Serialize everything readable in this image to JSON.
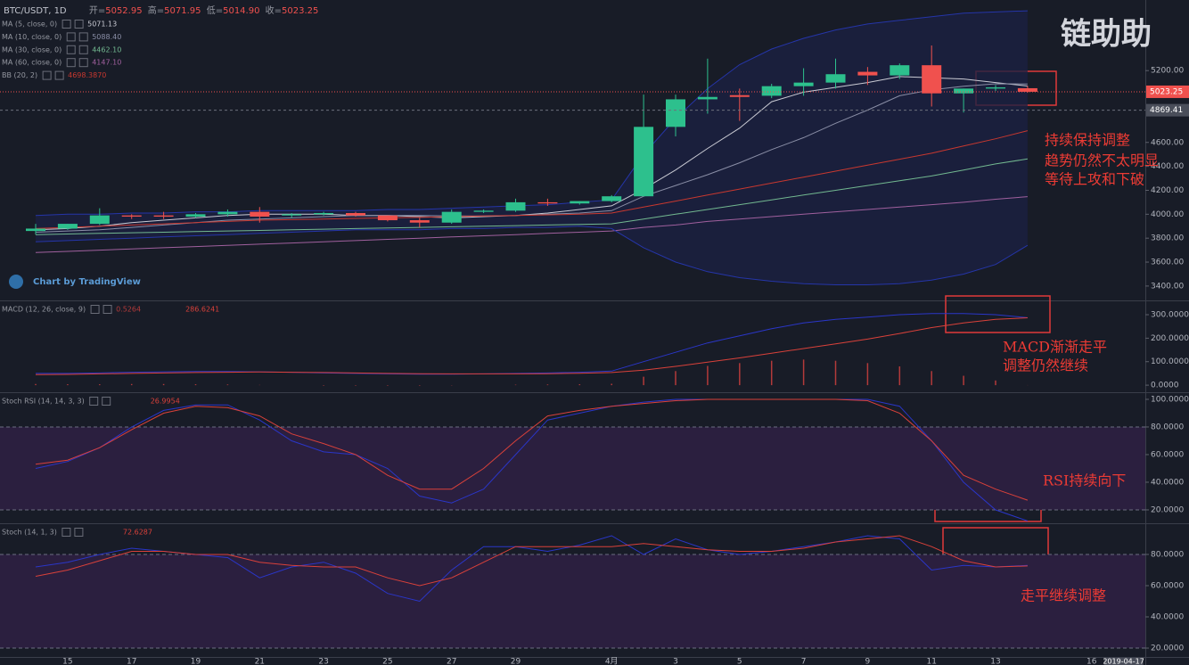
{
  "header": {
    "symbol": "BTC/USDT, 1D",
    "open_label": "开=",
    "open": "5052.95",
    "high_label": "高=",
    "high": "5071.95",
    "low_label": "低=",
    "low": "5014.90",
    "close_label": "收=",
    "close": "5023.25"
  },
  "watermark": "链助助",
  "credit": "Chart by TradingView",
  "chart_data": [
    {
      "type": "candlestick",
      "categories": [
        null,
        "15",
        null,
        "17",
        null,
        "19",
        null,
        "21",
        null,
        "23",
        null,
        "25",
        null,
        "27",
        null,
        "29",
        null,
        null,
        "4月",
        null,
        "3",
        null,
        "5",
        null,
        "7",
        null,
        "9",
        null,
        "11",
        null,
        "13",
        null,
        null,
        "16",
        "2019-04-17"
      ],
      "open": [
        3860,
        3880,
        3920,
        3990,
        3990,
        3980,
        4000,
        4020,
        3990,
        4000,
        4010,
        3990,
        3950,
        3930,
        4020,
        4030,
        4100,
        4090,
        4110,
        4150,
        4730,
        4960,
        4995,
        4990,
        5070,
        5100,
        5190,
        5160,
        5245,
        5010,
        5050,
        5052.95,
        null,
        null,
        null
      ],
      "high": [
        3920,
        3920,
        4050,
        4000,
        4020,
        4010,
        4040,
        4060,
        4010,
        4020,
        4020,
        3990,
        3970,
        4040,
        4040,
        4130,
        4130,
        4110,
        4160,
        5000,
        5000,
        5300,
        5050,
        5090,
        5220,
        5300,
        5230,
        5260,
        5410,
        5050,
        5080,
        5071.95,
        null,
        null,
        null
      ],
      "low": [
        3830,
        3870,
        3910,
        3960,
        3960,
        3970,
        3980,
        3930,
        3970,
        3990,
        3980,
        3940,
        3890,
        3920,
        4010,
        4020,
        4070,
        4080,
        4100,
        4150,
        4650,
        4840,
        4780,
        4970,
        4990,
        5050,
        5080,
        5130,
        4900,
        4850,
        5030,
        5014.9,
        null,
        null,
        null
      ],
      "close": [
        3880,
        3920,
        3990,
        3980,
        3980,
        4000,
        4020,
        3980,
        4000,
        4010,
        3990,
        3950,
        3930,
        4020,
        4030,
        4100,
        4090,
        4110,
        4150,
        4730,
        4960,
        4980,
        4980,
        5070,
        5100,
        5170,
        5160,
        5245,
        5010,
        5050,
        5060,
        5023.25,
        null,
        null,
        null
      ],
      "up_color": "#2dc08d",
      "down_color": "#f0514e",
      "ylim": [
        3280,
        5790
      ],
      "yticks": [
        {
          "value": 3400,
          "label": "3400.00"
        },
        {
          "value": 3600,
          "label": "3600.00"
        },
        {
          "value": 3800,
          "label": "3800.00"
        },
        {
          "value": 4000,
          "label": "4000.00"
        },
        {
          "value": 4200,
          "label": "4200.00"
        },
        {
          "value": 4400,
          "label": "4400.00"
        },
        {
          "value": 4600,
          "label": "4600.00"
        },
        {
          "value": 5200,
          "label": "5200.00"
        }
      ],
      "horizontal_line": 4869.41,
      "fill_color": "#1c2142",
      "series": [
        {
          "name": "MA (5, close, 0)",
          "color": "#c9cad3",
          "value_label": "5071.13",
          "values": [
            3870,
            3880,
            3900,
            3930,
            3950,
            3970,
            3990,
            4000,
            4000,
            4000,
            3990,
            3990,
            3980,
            3970,
            3980,
            3990,
            4010,
            4040,
            4070,
            4210,
            4370,
            4550,
            4720,
            4940,
            5020,
            5060,
            5100,
            5150,
            5140,
            5130,
            5100,
            5071.13,
            null,
            null,
            null
          ]
        },
        {
          "name": "MA (10, close, 0)",
          "color": "#8a8ea6",
          "value_label": "5088.40",
          "values": [
            3850,
            3860,
            3870,
            3890,
            3910,
            3930,
            3950,
            3960,
            3970,
            3980,
            3990,
            3990,
            3990,
            3985,
            3985,
            3990,
            4000,
            4010,
            4030,
            4150,
            4240,
            4330,
            4430,
            4540,
            4640,
            4760,
            4870,
            4990,
            5040,
            5070,
            5090,
            5088.4,
            null,
            null,
            null
          ]
        },
        {
          "name": "MA (30, close, 0)",
          "color": "#72b890",
          "value_label": "4462.10",
          "values": [
            3830,
            3835,
            3840,
            3845,
            3850,
            3855,
            3860,
            3865,
            3870,
            3875,
            3880,
            3885,
            3890,
            3895,
            3900,
            3905,
            3910,
            3915,
            3920,
            3960,
            4000,
            4040,
            4080,
            4120,
            4160,
            4200,
            4240,
            4280,
            4320,
            4370,
            4420,
            4462.1,
            null,
            null,
            null
          ]
        },
        {
          "name": "MA (60, close, 0)",
          "color": "#a0609e",
          "value_label": "4147.10",
          "values": [
            3680,
            3690,
            3700,
            3710,
            3720,
            3730,
            3740,
            3750,
            3760,
            3770,
            3780,
            3790,
            3800,
            3810,
            3820,
            3830,
            3840,
            3850,
            3860,
            3890,
            3910,
            3940,
            3960,
            3980,
            4000,
            4020,
            4040,
            4060,
            4080,
            4100,
            4125,
            4147.1,
            null,
            null,
            null
          ]
        },
        {
          "name": "BB (20, 2)",
          "color": "#c8382f",
          "value_label": "4698.3870",
          "values": [
            3880,
            3890,
            3900,
            3910,
            3920,
            3930,
            3940,
            3950,
            3955,
            3960,
            3965,
            3970,
            3975,
            3980,
            3985,
            3990,
            3995,
            4000,
            4010,
            4060,
            4110,
            4160,
            4210,
            4260,
            4310,
            4360,
            4410,
            4460,
            4510,
            4570,
            4630,
            4698.387,
            null,
            null,
            null
          ]
        },
        {
          "color": "#2535a8",
          "values": [
            3990,
            4000,
            4000,
            4010,
            4010,
            4020,
            4020,
            4030,
            4030,
            4030,
            4030,
            4040,
            4040,
            4050,
            4060,
            4070,
            4080,
            4100,
            4120,
            4500,
            4800,
            5050,
            5250,
            5380,
            5470,
            5540,
            5590,
            5620,
            5650,
            5680,
            5690,
            5700,
            null,
            null,
            null
          ]
        },
        {
          "color": "#2535a8",
          "values": [
            3770,
            3780,
            3790,
            3800,
            3810,
            3820,
            3830,
            3840,
            3850,
            3860,
            3870,
            3870,
            3870,
            3880,
            3880,
            3890,
            3890,
            3900,
            3880,
            3720,
            3600,
            3520,
            3470,
            3440,
            3420,
            3410,
            3410,
            3420,
            3450,
            3500,
            3580,
            3740,
            null,
            null,
            null
          ]
        }
      ],
      "annotations": [
        "持续保持调整",
        "趋势仍然不太明显",
        "等待上攻和下破"
      ]
    },
    {
      "type": "macd",
      "title": "MACD (12, 26, close, 9)",
      "ylim": [
        -30,
        357
      ],
      "yticks": [
        {
          "value": 0,
          "label": "0.0000"
        },
        {
          "value": 100,
          "label": "100.0000"
        },
        {
          "value": 200,
          "label": "200.0000"
        },
        {
          "value": 300,
          "label": "300.0000"
        }
      ],
      "series": [
        {
          "type": "histogram",
          "color": "#b33a3a",
          "value_label": "0.5264",
          "values": [
            5,
            4,
            4,
            5,
            5,
            4,
            3,
            1,
            0,
            -2,
            -2,
            -2,
            -2,
            -1,
            0,
            2,
            3,
            4,
            6,
            36,
            60,
            82,
            94,
            104,
            109,
            104,
            94,
            80,
            60,
            40,
            20,
            0.5264,
            null,
            null,
            null
          ]
        },
        {
          "color": "#2a36c8",
          "values": [
            50,
            50,
            52,
            55,
            57,
            58,
            58,
            57,
            55,
            52,
            50,
            48,
            47,
            47,
            48,
            50,
            52,
            55,
            60,
            100,
            140,
            180,
            210,
            240,
            265,
            280,
            290,
            300,
            305,
            305,
            300,
            287.15,
            null,
            null,
            null
          ]
        },
        {
          "color": "#d9413a",
          "value_label": "286.6241",
          "values": [
            45,
            46,
            48,
            50,
            52,
            54,
            55,
            56,
            55,
            54,
            52,
            50,
            49,
            48,
            48,
            48,
            49,
            51,
            54,
            64,
            80,
            98,
            116,
            136,
            156,
            176,
            196,
            220,
            245,
            265,
            280,
            286.6241,
            null,
            null,
            null
          ]
        }
      ],
      "annotations": [
        "MACD渐渐走平",
        "调整仍然继续"
      ]
    },
    {
      "type": "oscillator",
      "title": "Stoch RSI (14, 14, 3, 3)",
      "ylim": [
        10.3,
        104.5
      ],
      "band": [
        20,
        80
      ],
      "band_color": "#2b1f3f",
      "yticks": [
        {
          "value": 20,
          "label": "20.0000"
        },
        {
          "value": 40,
          "label": "40.0000"
        },
        {
          "value": 60,
          "label": "60.0000"
        },
        {
          "value": 80,
          "label": "80.0000"
        },
        {
          "value": 100,
          "label": "100.0000"
        }
      ],
      "series": [
        {
          "color": "#2a36c8",
          "values": [
            50,
            55,
            65,
            80,
            92,
            96,
            96,
            85,
            70,
            62,
            60,
            50,
            30,
            25,
            35,
            60,
            85,
            90,
            95,
            98,
            100,
            100,
            100,
            100,
            100,
            100,
            100,
            95,
            70,
            40,
            20,
            12,
            null,
            null,
            null
          ]
        },
        {
          "color": "#d9413a",
          "value_label": "26.9954",
          "values": [
            53,
            56,
            65,
            78,
            90,
            95,
            94,
            88,
            75,
            68,
            60,
            45,
            35,
            35,
            50,
            70,
            88,
            92,
            95,
            97,
            99,
            100,
            100,
            100,
            100,
            100,
            99,
            90,
            70,
            45,
            35,
            26.9954,
            null,
            null,
            null
          ]
        }
      ],
      "annotations": [
        "RSI持续向下"
      ]
    },
    {
      "type": "oscillator",
      "title": "Stoch (14, 1, 3)",
      "ylim": [
        14.3,
        99.4
      ],
      "band": [
        20,
        80
      ],
      "band_color": "#2b1f3f",
      "yticks": [
        {
          "value": 20,
          "label": "20.0000"
        },
        {
          "value": 40,
          "label": "40.0000"
        },
        {
          "value": 60,
          "label": "60.0000"
        },
        {
          "value": 80,
          "label": "80.0000"
        }
      ],
      "series": [
        {
          "color": "#2a36c8",
          "values": [
            72,
            75,
            80,
            84,
            82,
            80,
            78,
            65,
            72,
            75,
            68,
            55,
            50,
            70,
            85,
            85,
            82,
            86,
            92,
            80,
            90,
            83,
            80,
            82,
            85,
            88,
            92,
            90,
            70,
            73,
            72,
            73,
            null,
            null,
            null
          ]
        },
        {
          "color": "#d9413a",
          "value_label": "72.6287",
          "values": [
            66,
            70,
            76,
            82,
            82,
            80,
            80,
            75,
            73,
            72,
            72,
            65,
            60,
            65,
            75,
            85,
            85,
            85,
            85,
            87,
            85,
            83,
            82,
            82,
            84,
            88,
            90,
            92,
            85,
            76,
            72,
            72.6287,
            null,
            null,
            null
          ]
        }
      ],
      "annotations": [
        "走平继续调整"
      ]
    }
  ]
}
